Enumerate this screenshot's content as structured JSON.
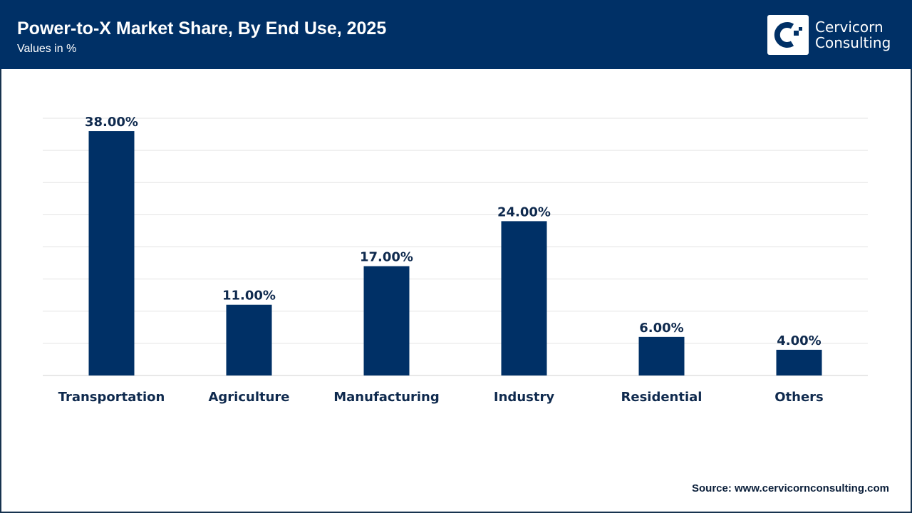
{
  "header": {
    "title": "Power-to-X Market Share, By End Use, 2025",
    "subtitle": "Values in %"
  },
  "logo": {
    "line1": "Cervicorn",
    "line2": "Consulting"
  },
  "source": "Source: www.cervicornconsulting.com",
  "colors": {
    "header": "#003066",
    "bar": "#003066",
    "grid": "#e3e3e3"
  },
  "chart_data": {
    "type": "bar",
    "categories": [
      "Transportation",
      "Agriculture",
      "Manufacturing",
      "Industry",
      "Residential",
      "Others"
    ],
    "values": [
      38,
      11,
      17,
      24,
      6,
      4
    ],
    "data_labels": [
      "38.00%",
      "11.00%",
      "17.00%",
      "24.00%",
      "6.00%",
      "4.00%"
    ],
    "ylim": [
      0,
      40
    ],
    "grid": true,
    "y_tick_labels_shown": false
  }
}
